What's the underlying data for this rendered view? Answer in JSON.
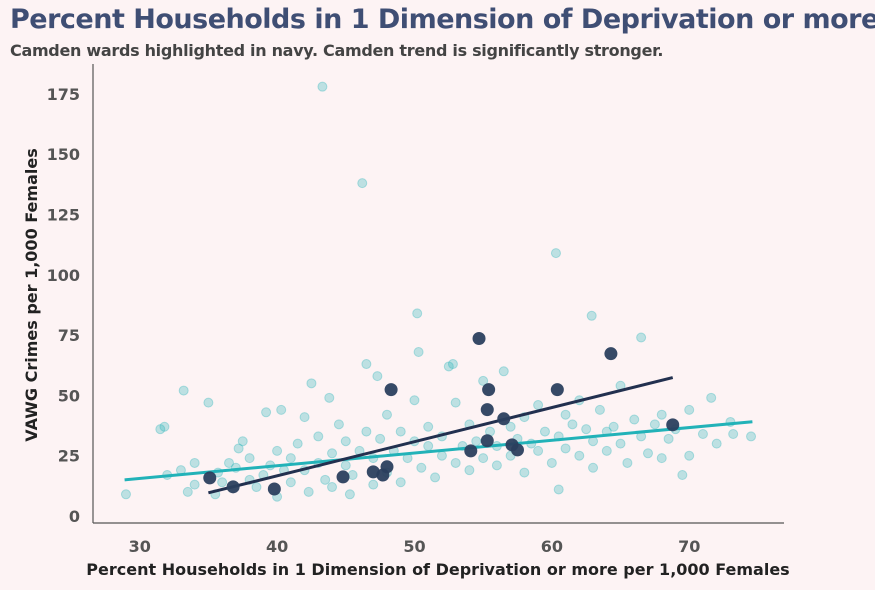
{
  "chart_data": {
    "type": "scatter",
    "title": "Percent Households in 1 Dimension of Deprivation or more",
    "subtitle": "Camden wards highlighted in navy. Camden trend is significantly stronger.",
    "xlabel": "Percent Households in 1 Dimension of Deprivation or more per 1,000 Females",
    "ylabel": "VAWG Crimes per 1,000 Females",
    "xlim": [
      26.6,
      76.9
    ],
    "ylim": [
      -2.9,
      187.4
    ],
    "xticks": [
      "30",
      "40",
      "50",
      "60",
      "70"
    ],
    "yticks": [
      "0",
      "25",
      "50",
      "75",
      "100",
      "125",
      "150",
      "175"
    ],
    "grid": false,
    "colors": {
      "other": "#2ab5b9",
      "camden": "#2b3f5e",
      "camden_trend": "#22304f",
      "other_trend": "#22b2b8",
      "title": "#3f4e74",
      "background": "#fdf3f4"
    },
    "other_wards": [
      [
        29,
        9
      ],
      [
        31.5,
        36
      ],
      [
        31.8,
        37
      ],
      [
        32,
        17
      ],
      [
        33,
        19
      ],
      [
        33.2,
        52
      ],
      [
        33.5,
        10
      ],
      [
        34,
        13
      ],
      [
        34,
        22
      ],
      [
        35,
        47
      ],
      [
        35.5,
        9
      ],
      [
        35.7,
        18
      ],
      [
        36,
        14
      ],
      [
        36.5,
        22
      ],
      [
        37,
        20
      ],
      [
        37.2,
        28
      ],
      [
        37.5,
        31
      ],
      [
        38,
        15
      ],
      [
        38,
        24
      ],
      [
        38.5,
        12
      ],
      [
        39,
        17
      ],
      [
        39.2,
        43
      ],
      [
        39.5,
        21
      ],
      [
        40,
        27
      ],
      [
        40,
        8
      ],
      [
        40.3,
        44
      ],
      [
        40.5,
        19
      ],
      [
        41,
        24
      ],
      [
        41,
        14
      ],
      [
        41.5,
        30
      ],
      [
        42,
        41
      ],
      [
        42,
        19
      ],
      [
        42.3,
        10
      ],
      [
        42.5,
        55
      ],
      [
        43,
        22
      ],
      [
        43,
        33
      ],
      [
        43.3,
        178
      ],
      [
        43.5,
        15
      ],
      [
        43.8,
        49
      ],
      [
        44,
        26
      ],
      [
        44,
        12
      ],
      [
        44.5,
        38
      ],
      [
        45,
        21
      ],
      [
        45,
        31
      ],
      [
        45.3,
        9
      ],
      [
        45.5,
        17
      ],
      [
        46,
        27
      ],
      [
        46.2,
        138
      ],
      [
        46.5,
        63
      ],
      [
        46.5,
        35
      ],
      [
        47,
        13
      ],
      [
        47,
        24
      ],
      [
        47.3,
        58
      ],
      [
        47.5,
        32
      ],
      [
        48,
        42
      ],
      [
        48,
        18
      ],
      [
        48.5,
        27
      ],
      [
        49,
        35
      ],
      [
        49,
        14
      ],
      [
        49.5,
        24
      ],
      [
        50,
        48
      ],
      [
        50,
        31
      ],
      [
        50.2,
        84
      ],
      [
        50.3,
        68
      ],
      [
        50.5,
        20
      ],
      [
        51,
        29
      ],
      [
        51,
        37
      ],
      [
        51.5,
        16
      ],
      [
        52,
        25
      ],
      [
        52,
        33
      ],
      [
        52.5,
        62
      ],
      [
        52.8,
        63
      ],
      [
        53,
        47
      ],
      [
        53,
        22
      ],
      [
        53.5,
        29
      ],
      [
        54,
        38
      ],
      [
        54,
        19
      ],
      [
        54.5,
        31
      ],
      [
        55,
        24
      ],
      [
        55,
        56
      ],
      [
        55.5,
        35
      ],
      [
        56,
        21
      ],
      [
        56,
        29
      ],
      [
        56.5,
        60
      ],
      [
        57,
        37
      ],
      [
        57,
        25
      ],
      [
        57.5,
        32
      ],
      [
        58,
        18
      ],
      [
        58,
        41
      ],
      [
        58.5,
        30
      ],
      [
        59,
        27
      ],
      [
        59,
        46
      ],
      [
        59.5,
        35
      ],
      [
        60,
        22
      ],
      [
        60.3,
        109
      ],
      [
        60.5,
        33
      ],
      [
        60.5,
        11
      ],
      [
        61,
        42
      ],
      [
        61,
        28
      ],
      [
        61.5,
        38
      ],
      [
        62,
        48
      ],
      [
        62,
        25
      ],
      [
        62.5,
        36
      ],
      [
        62.9,
        83
      ],
      [
        63,
        31
      ],
      [
        63,
        20
      ],
      [
        63.5,
        44
      ],
      [
        64,
        35
      ],
      [
        64,
        27
      ],
      [
        64.5,
        37
      ],
      [
        65,
        30
      ],
      [
        65,
        54
      ],
      [
        65.5,
        22
      ],
      [
        66,
        40
      ],
      [
        66.5,
        74
      ],
      [
        66.5,
        33
      ],
      [
        67,
        26
      ],
      [
        67.5,
        38
      ],
      [
        68,
        24
      ],
      [
        68,
        42
      ],
      [
        68.5,
        32
      ],
      [
        69,
        36
      ],
      [
        69.5,
        17
      ],
      [
        70,
        25
      ],
      [
        70,
        44
      ],
      [
        71,
        34
      ],
      [
        71.6,
        49
      ],
      [
        72,
        30
      ],
      [
        73,
        39
      ],
      [
        73.2,
        34
      ],
      [
        74.5,
        33
      ]
    ],
    "camden_wards": [
      [
        35.1,
        15.8
      ],
      [
        36.8,
        12.1
      ],
      [
        39.8,
        11.2
      ],
      [
        44.8,
        16.2
      ],
      [
        47.0,
        18.3
      ],
      [
        47.7,
        17.0
      ],
      [
        48.0,
        20.4
      ],
      [
        48.3,
        52.4
      ],
      [
        54.7,
        73.6
      ],
      [
        55.4,
        52.4
      ],
      [
        55.3,
        44.1
      ],
      [
        56.5,
        40.3
      ],
      [
        55.3,
        31.2
      ],
      [
        54.1,
        27.0
      ],
      [
        57.1,
        29.5
      ],
      [
        57.5,
        27.4
      ],
      [
        60.4,
        52.4
      ],
      [
        64.3,
        67.3
      ],
      [
        68.8,
        37.8
      ]
    ],
    "camden_trend": [
      [
        35.0,
        9.6
      ],
      [
        68.8,
        57.4
      ]
    ],
    "other_trend": [
      [
        28.9,
        15.0
      ],
      [
        74.6,
        39.1
      ]
    ]
  }
}
